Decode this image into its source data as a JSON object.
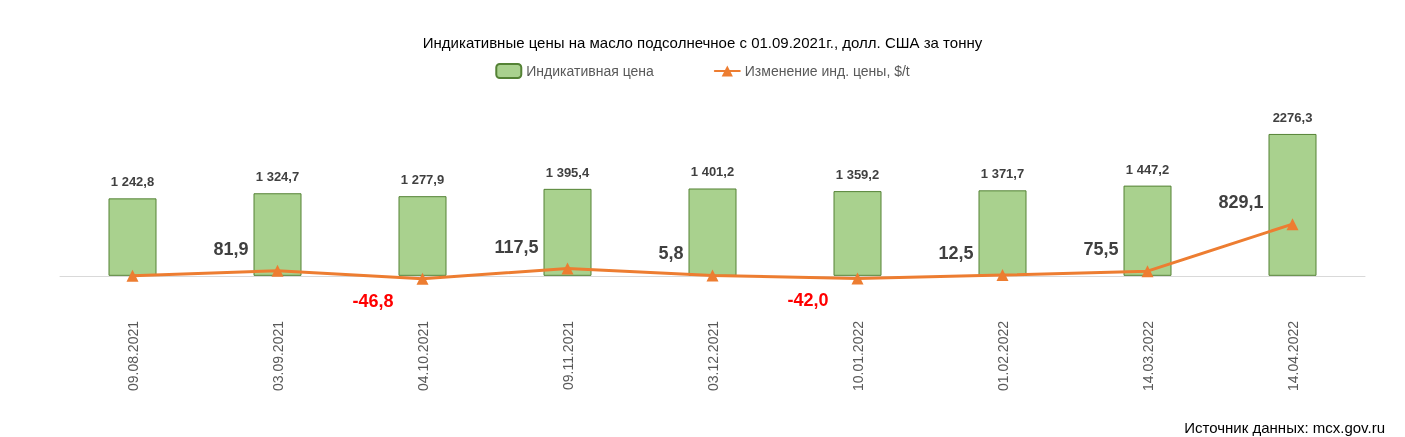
{
  "chart_data": {
    "type": "bar",
    "title": "Индикативные цены на масло подсолнечное с 01.09.2021г., долл. США за тонну",
    "categories": [
      "09.08.2021",
      "03.09.2021",
      "04.10.2021",
      "09.11.2021",
      "03.12.2021",
      "10.01.2022",
      "01.02.2022",
      "14.03.2022",
      "14.04.2022"
    ],
    "series": [
      {
        "name": "Индикативная цена",
        "color": "#a9d18e",
        "values": [
          1242.8,
          1324.7,
          1277.9,
          1395.4,
          1401.2,
          1359.2,
          1371.7,
          1447.2,
          2276.3
        ],
        "value_labels": [
          "1 242,8",
          "1 324,7",
          "1 277,9",
          "1 395,4",
          "1 401,2",
          "1 359,2",
          "1 371,7",
          "1 447,2",
          "2276,3"
        ]
      },
      {
        "name": "Изменение инд. цены, $/t",
        "type": "line",
        "color": "#ed7d31",
        "marker": "triangle",
        "values": [
          0,
          81.9,
          -46.8,
          117.5,
          5.8,
          -42.0,
          12.5,
          75.5,
          829.1
        ],
        "value_labels": [
          null,
          "81,9",
          "-46,8",
          "117,5",
          "5,8",
          "-42,0",
          "12,5",
          "75,5",
          "829,1"
        ]
      }
    ],
    "legend": "top",
    "annotations": [
      "Источник данных: mcx.gov.ru"
    ]
  }
}
